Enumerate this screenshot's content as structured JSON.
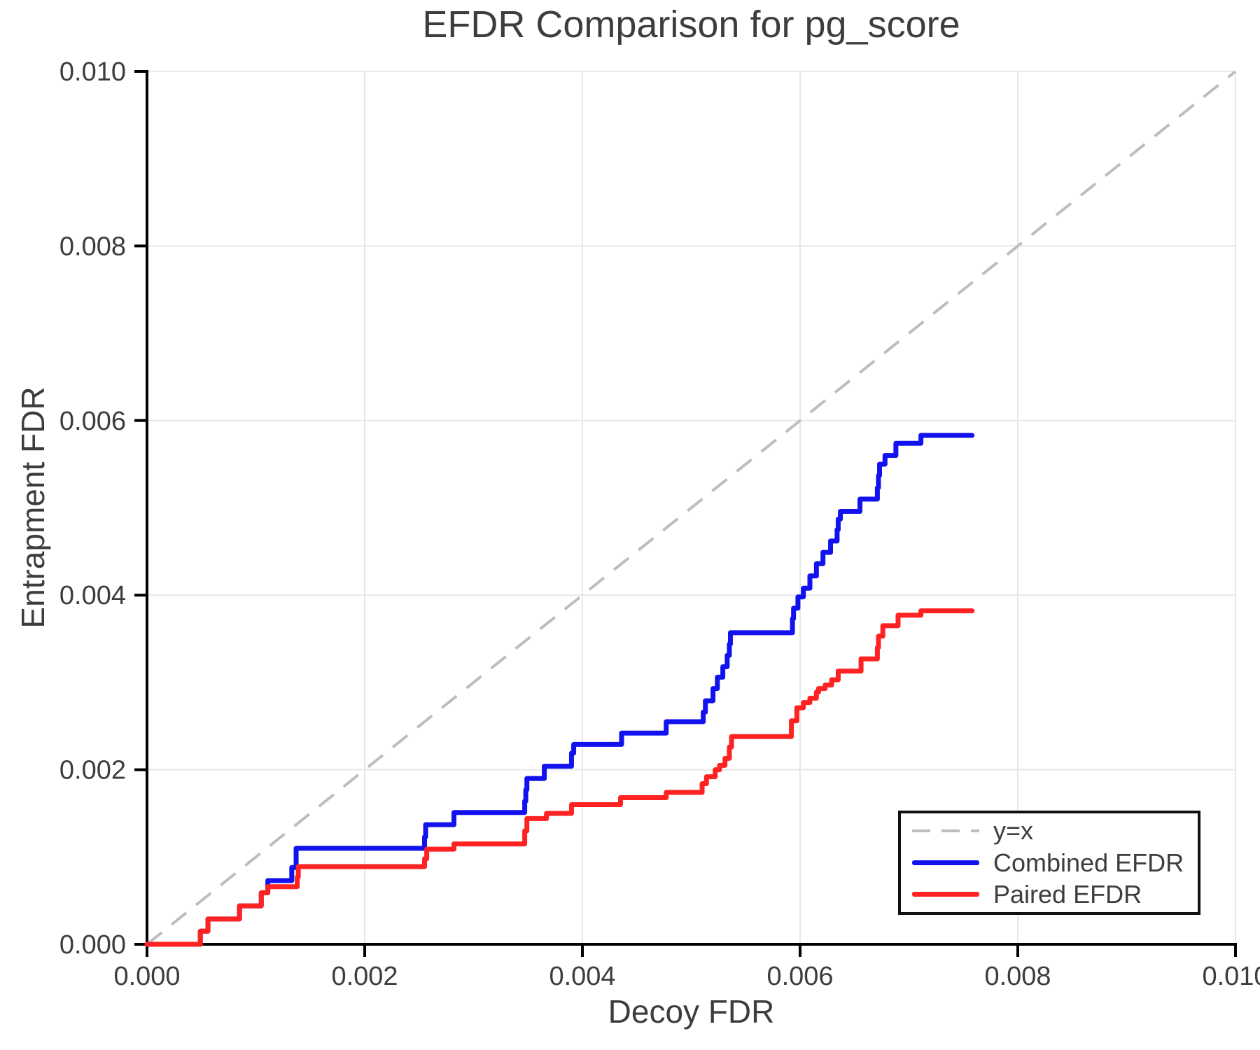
{
  "chart_data": {
    "type": "line",
    "subtype": "step",
    "title": "EFDR Comparison for pg_score",
    "xlabel": "Decoy FDR",
    "ylabel": "Entrapment FDR",
    "xlim": [
      0.0,
      0.01
    ],
    "ylim": [
      0.0,
      0.01
    ],
    "grid": true,
    "x_ticks": [
      "0.000",
      "0.002",
      "0.004",
      "0.006",
      "0.008",
      "0.010"
    ],
    "y_ticks": [
      "0.000",
      "0.002",
      "0.004",
      "0.006",
      "0.008",
      "0.010"
    ],
    "x_tick_values": [
      0.0,
      0.002,
      0.004,
      0.006,
      0.008,
      0.01
    ],
    "y_tick_values": [
      0.0,
      0.002,
      0.004,
      0.006,
      0.008,
      0.01
    ],
    "legend_position": "lower right",
    "legend": [
      {
        "label": "y=x",
        "style": "dashed",
        "color": "#bdbdbd"
      },
      {
        "label": "Combined EFDR",
        "style": "solid",
        "color": "#1212ee"
      },
      {
        "label": "Paired EFDR",
        "style": "solid",
        "color": "#ff2222"
      }
    ],
    "style": {
      "grid_color": "#e7e7e7",
      "spine_color": "#000000",
      "text_color": "#3d3d3d",
      "background": "#ffffff",
      "diagonal_dash": "27 18",
      "series_line_width": 7
    },
    "series": [
      {
        "name": "y=x",
        "type": "diagonal",
        "color": "#bdbdbd",
        "from": [
          0.0,
          0.0
        ],
        "to": [
          0.01,
          0.01
        ]
      },
      {
        "name": "Combined EFDR",
        "type": "step",
        "color": "#1212ee",
        "start": [
          0.0,
          0.0
        ],
        "end_x": 0.00758,
        "steps": [
          [
            0.00049,
            0.00015
          ],
          [
            0.00056,
            0.00029
          ],
          [
            0.00085,
            0.00044
          ],
          [
            0.00105,
            0.00059
          ],
          [
            0.00111,
            0.00073
          ],
          [
            0.00133,
            0.00088
          ],
          [
            0.00137,
            0.0011
          ],
          [
            0.00255,
            0.00123
          ],
          [
            0.00256,
            0.00137
          ],
          [
            0.00282,
            0.00151
          ],
          [
            0.00347,
            0.00164
          ],
          [
            0.00348,
            0.00177
          ],
          [
            0.00349,
            0.0019
          ],
          [
            0.00365,
            0.00204
          ],
          [
            0.0039,
            0.00219
          ],
          [
            0.00392,
            0.00229
          ],
          [
            0.00436,
            0.00242
          ],
          [
            0.00477,
            0.00255
          ],
          [
            0.00511,
            0.00266
          ],
          [
            0.00513,
            0.00279
          ],
          [
            0.0052,
            0.00293
          ],
          [
            0.00524,
            0.00306
          ],
          [
            0.00529,
            0.00318
          ],
          [
            0.00533,
            0.00331
          ],
          [
            0.00535,
            0.00344
          ],
          [
            0.00536,
            0.00357
          ],
          [
            0.00593,
            0.00373
          ],
          [
            0.00594,
            0.00385
          ],
          [
            0.00598,
            0.00398
          ],
          [
            0.00603,
            0.00408
          ],
          [
            0.00609,
            0.00422
          ],
          [
            0.00615,
            0.00436
          ],
          [
            0.00621,
            0.00449
          ],
          [
            0.00628,
            0.00462
          ],
          [
            0.00634,
            0.00475
          ],
          [
            0.00635,
            0.00487
          ],
          [
            0.00637,
            0.00496
          ],
          [
            0.00655,
            0.0051
          ],
          [
            0.00671,
            0.00523
          ],
          [
            0.00672,
            0.00537
          ],
          [
            0.00673,
            0.0055
          ],
          [
            0.00678,
            0.0056
          ],
          [
            0.00688,
            0.00574
          ],
          [
            0.00711,
            0.00583
          ]
        ]
      },
      {
        "name": "Paired EFDR",
        "type": "step",
        "color": "#ff2222",
        "start": [
          0.0,
          0.0
        ],
        "end_x": 0.00758,
        "steps": [
          [
            0.00049,
            0.00015
          ],
          [
            0.00056,
            0.00029
          ],
          [
            0.00085,
            0.00044
          ],
          [
            0.00105,
            0.00059
          ],
          [
            0.00111,
            0.00066
          ],
          [
            0.00138,
            0.00077
          ],
          [
            0.00139,
            0.00089
          ],
          [
            0.00255,
            0.00098
          ],
          [
            0.00257,
            0.00109
          ],
          [
            0.00282,
            0.00115
          ],
          [
            0.00347,
            0.0013
          ],
          [
            0.00349,
            0.00144
          ],
          [
            0.00367,
            0.0015
          ],
          [
            0.0039,
            0.0016
          ],
          [
            0.00435,
            0.00168
          ],
          [
            0.00477,
            0.00174
          ],
          [
            0.0051,
            0.00184
          ],
          [
            0.00514,
            0.00192
          ],
          [
            0.00522,
            0.002
          ],
          [
            0.00526,
            0.00205
          ],
          [
            0.00531,
            0.00213
          ],
          [
            0.00535,
            0.00226
          ],
          [
            0.00537,
            0.00238
          ],
          [
            0.00592,
            0.00256
          ],
          [
            0.00597,
            0.00271
          ],
          [
            0.00603,
            0.00277
          ],
          [
            0.00609,
            0.00282
          ],
          [
            0.00615,
            0.00289
          ],
          [
            0.00617,
            0.00293
          ],
          [
            0.00623,
            0.00297
          ],
          [
            0.00629,
            0.00303
          ],
          [
            0.00635,
            0.00313
          ],
          [
            0.00656,
            0.00327
          ],
          [
            0.00671,
            0.0034
          ],
          [
            0.00672,
            0.00353
          ],
          [
            0.00676,
            0.00365
          ],
          [
            0.0069,
            0.00377
          ],
          [
            0.00711,
            0.00382
          ]
        ]
      }
    ]
  }
}
